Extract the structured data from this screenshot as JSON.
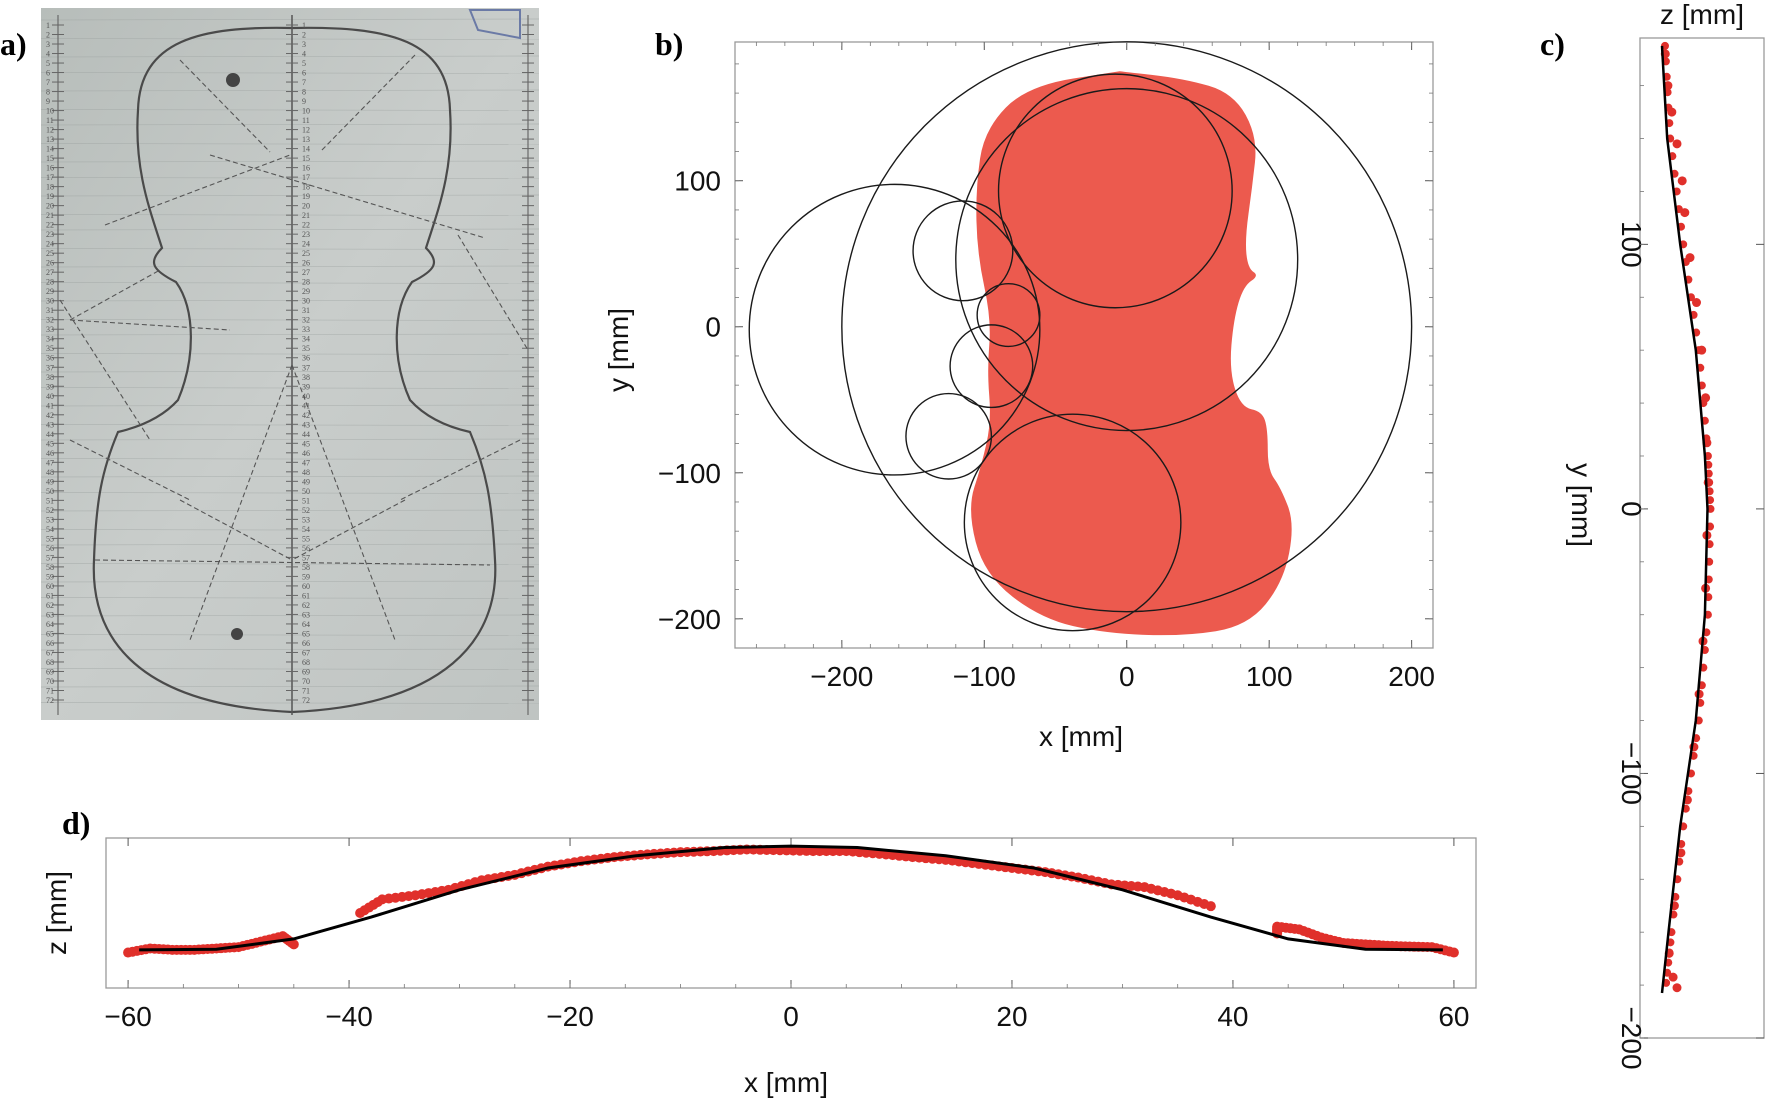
{
  "panels": {
    "a": {
      "label": "a)"
    },
    "b": {
      "label": "b)"
    },
    "c": {
      "label": "c)"
    },
    "d": {
      "label": "d)"
    }
  },
  "colors": {
    "violin_fill": "#ec5a4e",
    "circle_stroke": "#1a1a1a",
    "points": "#e0302b",
    "fit_line": "#000000",
    "photo_paper": "#c4c9c7",
    "pencil": "#555555"
  },
  "chart_data": [
    {
      "panel": "b",
      "type": "scatter",
      "description_shape": "red filled violin outline with constructing circles",
      "xlabel": "x [mm]",
      "ylabel": "y [mm]",
      "xlim": [
        -275,
        215
      ],
      "ylim": [
        -220,
        195
      ],
      "x_ticks": [
        -200,
        -100,
        0,
        100,
        200
      ],
      "x_tick_labels": [
        "−200",
        "−100",
        "0",
        "100",
        "200"
      ],
      "y_ticks": [
        100,
        0,
        -100,
        -200
      ],
      "y_tick_labels": [
        "100",
        "0",
        "−100",
        "−200"
      ],
      "circles": [
        {
          "cx": 0,
          "cy": 0,
          "r": 200
        },
        {
          "cx": -163,
          "cy": -2,
          "r": 102
        },
        {
          "cx": -8,
          "cy": 93,
          "r": 82
        },
        {
          "cx": -38,
          "cy": -134,
          "r": 76
        },
        {
          "cx": 0,
          "cy": 46,
          "r": 120
        },
        {
          "cx": -115,
          "cy": 52,
          "r": 35
        },
        {
          "cx": -83,
          "cy": 8,
          "r": 22
        },
        {
          "cx": -95,
          "cy": -27,
          "r": 29
        },
        {
          "cx": -125,
          "cy": -75,
          "r": 30
        }
      ],
      "violin_outline": [
        [
          -5,
          175
        ],
        [
          40,
          170
        ],
        [
          75,
          160
        ],
        [
          92,
          130
        ],
        [
          88,
          95
        ],
        [
          83,
          60
        ],
        [
          85,
          40
        ],
        [
          93,
          35
        ],
        [
          82,
          28
        ],
        [
          75,
          5
        ],
        [
          72,
          -30
        ],
        [
          80,
          -55
        ],
        [
          95,
          -58
        ],
        [
          99,
          -70
        ],
        [
          99,
          -98
        ],
        [
          108,
          -110
        ],
        [
          118,
          -135
        ],
        [
          110,
          -175
        ],
        [
          85,
          -205
        ],
        [
          40,
          -212
        ],
        [
          -15,
          -210
        ],
        [
          -60,
          -200
        ],
        [
          -100,
          -170
        ],
        [
          -112,
          -125
        ],
        [
          -102,
          -95
        ],
        [
          -95,
          -65
        ],
        [
          -98,
          -30
        ],
        [
          -95,
          5
        ],
        [
          -105,
          50
        ],
        [
          -106,
          95
        ],
        [
          -100,
          135
        ],
        [
          -70,
          165
        ],
        [
          -5,
          175
        ]
      ]
    },
    {
      "panel": "c",
      "type": "scatter",
      "xlabel": "z [mm]",
      "ylabel": "y [mm]",
      "ylim": [
        -200,
        178
      ],
      "y_ticks": [
        100,
        0,
        -100,
        -200
      ],
      "y_tick_labels": [
        "100",
        "0",
        "−100",
        "−200"
      ],
      "fit_line": [
        [
          0.0,
          175
        ],
        [
          0.4,
          140
        ],
        [
          1.4,
          100
        ],
        [
          2.6,
          60
        ],
        [
          3.3,
          20
        ],
        [
          3.5,
          0
        ],
        [
          3.3,
          -40
        ],
        [
          2.6,
          -80
        ],
        [
          1.4,
          -120
        ],
        [
          0.5,
          -160
        ],
        [
          0.0,
          -183
        ]
      ],
      "points": [
        [
          0.1,
          172
        ],
        [
          0.3,
          160
        ],
        [
          0.6,
          150
        ],
        [
          1.0,
          138
        ],
        [
          1.4,
          124
        ],
        [
          1.6,
          112
        ],
        [
          2.0,
          95
        ],
        [
          2.5,
          78
        ],
        [
          2.9,
          60
        ],
        [
          3.2,
          42
        ],
        [
          3.3,
          25
        ],
        [
          3.4,
          10
        ],
        [
          3.3,
          -10
        ],
        [
          3.2,
          -30
        ],
        [
          3.0,
          -50
        ],
        [
          2.7,
          -70
        ],
        [
          2.3,
          -90
        ],
        [
          1.8,
          -110
        ],
        [
          1.3,
          -130
        ],
        [
          0.8,
          -150
        ],
        [
          0.4,
          -168
        ],
        [
          0.7,
          -177
        ],
        [
          1.0,
          -181
        ]
      ]
    },
    {
      "panel": "d",
      "type": "scatter",
      "xlabel": "x [mm]",
      "ylabel": "z [mm]",
      "xlim": [
        -62,
        62
      ],
      "ylim": [
        -3.2,
        2.3
      ],
      "x_ticks": [
        -60,
        -40,
        -20,
        0,
        20,
        40,
        60
      ],
      "x_tick_labels": [
        "−60",
        "−40",
        "−20",
        "0",
        "20",
        "40",
        "60"
      ],
      "fit_line": [
        [
          -59,
          -1.8
        ],
        [
          -52,
          -1.78
        ],
        [
          -45,
          -1.4
        ],
        [
          -38,
          -0.6
        ],
        [
          -30,
          0.4
        ],
        [
          -22,
          1.2
        ],
        [
          -14,
          1.65
        ],
        [
          -6,
          1.95
        ],
        [
          0,
          2.0
        ],
        [
          6,
          1.95
        ],
        [
          14,
          1.65
        ],
        [
          22,
          1.2
        ],
        [
          30,
          0.4
        ],
        [
          38,
          -0.6
        ],
        [
          45,
          -1.4
        ],
        [
          52,
          -1.78
        ],
        [
          59,
          -1.8
        ]
      ],
      "points": [
        [
          -60,
          -1.9
        ],
        [
          -58,
          -1.75
        ],
        [
          -56,
          -1.8
        ],
        [
          -54,
          -1.8
        ],
        [
          -52,
          -1.75
        ],
        [
          -50,
          -1.7
        ],
        [
          -48,
          -1.5
        ],
        [
          -46,
          -1.3
        ],
        [
          -45,
          -1.6
        ],
        [
          -39,
          -0.45
        ],
        [
          -37,
          0.05
        ],
        [
          -34,
          0.2
        ],
        [
          -31,
          0.4
        ],
        [
          -28,
          0.75
        ],
        [
          -25,
          0.95
        ],
        [
          -22,
          1.25
        ],
        [
          -19,
          1.45
        ],
        [
          -16,
          1.6
        ],
        [
          -13,
          1.7
        ],
        [
          -10,
          1.78
        ],
        [
          -7,
          1.82
        ],
        [
          -4,
          1.88
        ],
        [
          -1,
          1.85
        ],
        [
          2,
          1.82
        ],
        [
          5,
          1.82
        ],
        [
          8,
          1.72
        ],
        [
          11,
          1.6
        ],
        [
          14,
          1.5
        ],
        [
          17,
          1.35
        ],
        [
          20,
          1.2
        ],
        [
          23,
          1.05
        ],
        [
          26,
          0.85
        ],
        [
          29,
          0.6
        ],
        [
          32,
          0.5
        ],
        [
          35,
          0.2
        ],
        [
          38,
          -0.2
        ],
        [
          44,
          -1.2
        ],
        [
          44,
          -0.95
        ],
        [
          46,
          -1.05
        ],
        [
          48,
          -1.35
        ],
        [
          50,
          -1.55
        ],
        [
          52,
          -1.6
        ],
        [
          54,
          -1.65
        ],
        [
          56,
          -1.68
        ],
        [
          58,
          -1.7
        ],
        [
          60,
          -1.9
        ]
      ]
    }
  ],
  "photo_a": {
    "ruler_numbers": [
      "1",
      "2",
      "3",
      "4",
      "5",
      "6",
      "7",
      "8",
      "9",
      "10",
      "11",
      "12",
      "13",
      "14",
      "15",
      "16",
      "17",
      "18",
      "19",
      "20",
      "21",
      "22",
      "23",
      "24",
      "25",
      "26",
      "27",
      "28",
      "29",
      "30",
      "31",
      "32",
      "33",
      "34",
      "35",
      "36",
      "37",
      "38",
      "39",
      "40",
      "41",
      "42",
      "43",
      "44",
      "45",
      "46",
      "47",
      "48",
      "49",
      "50",
      "51",
      "52",
      "53",
      "54",
      "55",
      "56",
      "57",
      "58",
      "59",
      "60",
      "61",
      "62",
      "63",
      "64",
      "65",
      "66",
      "67",
      "68",
      "69",
      "70",
      "71",
      "72"
    ]
  }
}
